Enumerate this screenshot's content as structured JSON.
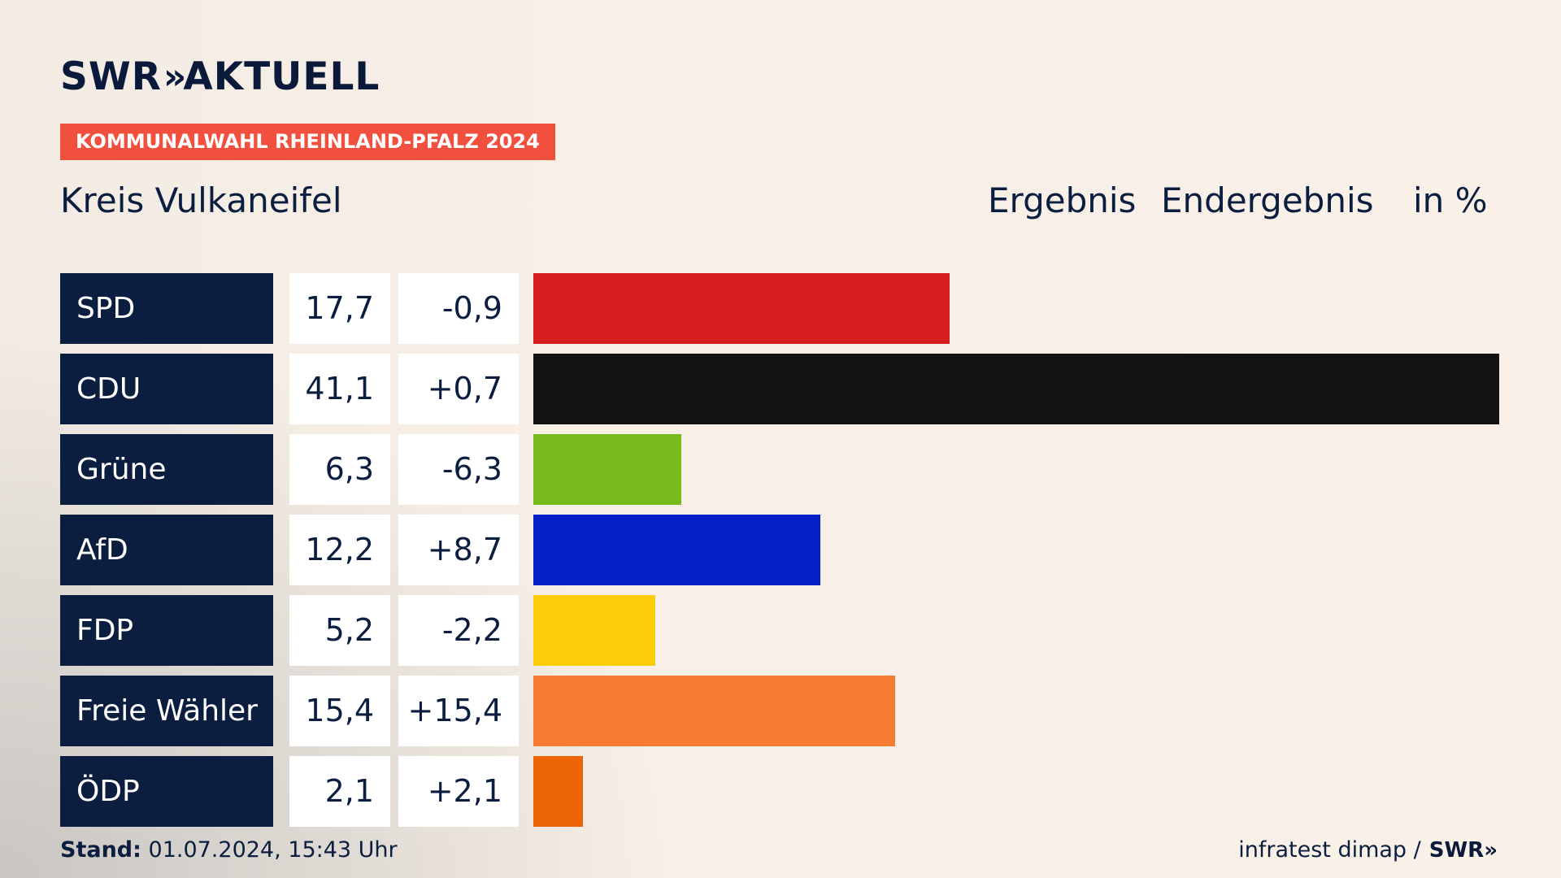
{
  "brand": {
    "swr": "SWR",
    "chevrons": "»",
    "aktuell": "AKTUELL"
  },
  "badge": "KOMMUNALWAHL RHEINLAND-PFALZ 2024",
  "region": "Kreis Vulkaneifel",
  "header": {
    "result": "Ergebnis",
    "status": "Endergebnis",
    "unit": "in %"
  },
  "chart_data": {
    "type": "bar",
    "orientation": "horizontal",
    "categories": [
      "SPD",
      "CDU",
      "Grüne",
      "AfD",
      "FDP",
      "Freie Wähler",
      "ÖDP"
    ],
    "values": [
      "17,7",
      "41,1",
      "6,3",
      "12,2",
      "5,2",
      "15,4",
      "2,1"
    ],
    "numeric_values": [
      17.7,
      41.1,
      6.3,
      12.2,
      5.2,
      15.4,
      2.1
    ],
    "changes": [
      "-0,9",
      "+0,7",
      "-6,3",
      "+8,7",
      "-2,2",
      "+15,4",
      "+2,1"
    ],
    "colors": [
      "#d71f1f",
      "#121212",
      "#78bb1f",
      "#0320c7",
      "#fccd09",
      "#f77c33",
      "#eb6405"
    ],
    "xlim": [
      0,
      41.1
    ]
  },
  "footer": {
    "stand_label": "Stand:",
    "stand_value": "01.07.2024, 15:43 Uhr",
    "source": "infratest dimap /",
    "source_brand": "SWR»"
  }
}
